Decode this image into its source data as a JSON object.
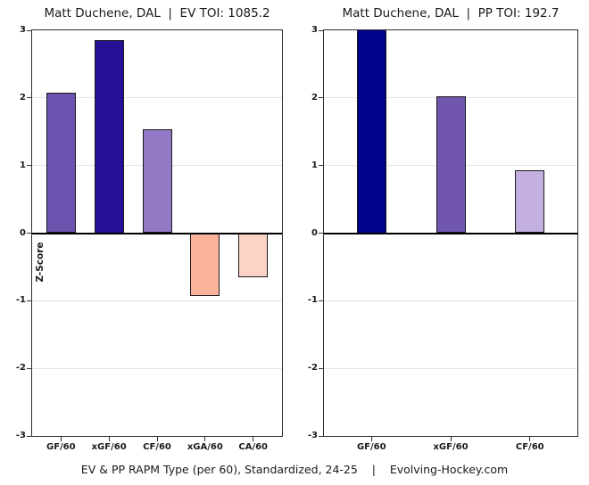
{
  "page": {
    "caption": "EV & PP RAPM Type (per 60), Standardized, 24-25    |    Evolving-Hockey.com"
  },
  "colors": {
    "background": "#FFFFFF",
    "text": "#1A1A1A",
    "grid": "#E4E4E4",
    "axis_border": "#2E2E2E",
    "zero_line": "#000000",
    "bar_border": "#1A1A1A"
  },
  "chart_data": [
    {
      "type": "bar",
      "panel": "even-strength",
      "title": "Matt Duchene, DAL  |  EV TOI: 1085.2",
      "ylabel": "Z-Score",
      "xlabel": "",
      "categories": [
        "GF/60",
        "xGF/60",
        "CF/60",
        "xGA/60",
        "CA/60"
      ],
      "values": [
        2.08,
        2.85,
        1.53,
        -0.93,
        -0.65
      ],
      "bar_colors": [
        "#6B52AE",
        "#251195",
        "#9379C5",
        "#FAB29A",
        "#FCD3C5"
      ],
      "ylim": [
        -3,
        3
      ],
      "yticks": [
        3,
        2,
        1,
        0,
        -1,
        -2,
        -3
      ],
      "grid": true,
      "legend": "none"
    },
    {
      "type": "bar",
      "panel": "power-play",
      "title": "Matt Duchene, DAL  |  PP TOI: 192.7",
      "ylabel": "",
      "xlabel": "",
      "categories": [
        "GF/60",
        "xGF/60",
        "CF/60"
      ],
      "values": [
        3.0,
        2.02,
        0.93
      ],
      "values_clipped_at_ylim": [
        true,
        false,
        false
      ],
      "bar_colors": [
        "#00038A",
        "#7056AE",
        "#C3B0E0"
      ],
      "ylim": [
        -3,
        3
      ],
      "yticks": [
        3,
        2,
        1,
        0,
        -1,
        -2,
        -3
      ],
      "grid": true,
      "legend": "none"
    }
  ]
}
